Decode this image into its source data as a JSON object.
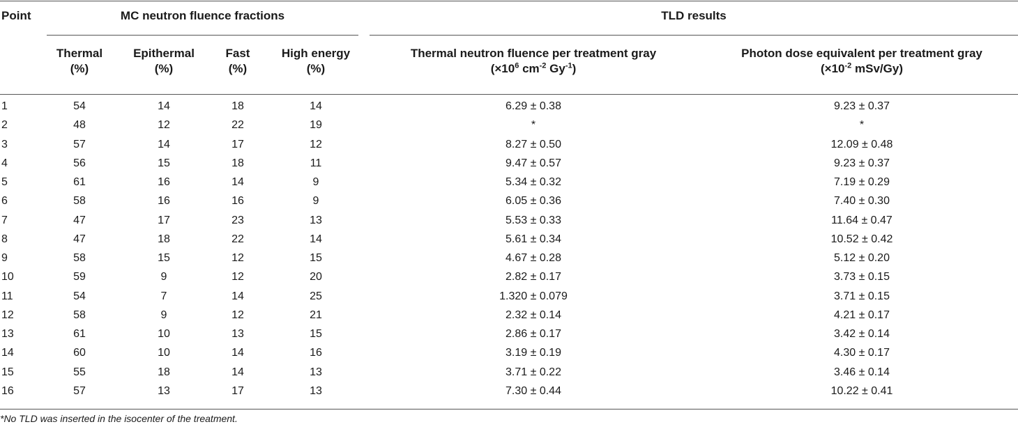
{
  "headers": {
    "point": "Point",
    "mc_group": "MC neutron fluence fractions",
    "tld_group": "TLD results",
    "thermal": [
      "Thermal",
      "(%)"
    ],
    "epithermal": [
      "Epithermal",
      "(%)"
    ],
    "fast": [
      "Fast",
      "(%)"
    ],
    "high_energy": [
      "High energy",
      "(%)"
    ],
    "thermal_fluence": {
      "line1": "Thermal neutron fluence per treatment gray",
      "prefix": "(×10",
      "exp1": "6",
      "mid": " cm",
      "exp2": "-2",
      "mid2": " Gy",
      "exp3": "-1",
      "suffix": ")"
    },
    "photon_dose": {
      "line1": "Photon dose equivalent per treatment gray",
      "prefix": "(×10",
      "exp1": "-2",
      "suffix": " mSv/Gy)"
    }
  },
  "rows": [
    [
      "1",
      "54",
      "14",
      "18",
      "14",
      "6.29 ± 0.38",
      "9.23 ± 0.37"
    ],
    [
      "2",
      "48",
      "12",
      "22",
      "19",
      "*",
      "*"
    ],
    [
      "3",
      "57",
      "14",
      "17",
      "12",
      "8.27 ± 0.50",
      "12.09 ± 0.48"
    ],
    [
      "4",
      "56",
      "15",
      "18",
      "11",
      "9.47 ± 0.57",
      "9.23 ± 0.37"
    ],
    [
      "5",
      "61",
      "16",
      "14",
      "9",
      "5.34 ± 0.32",
      "7.19 ± 0.29"
    ],
    [
      "6",
      "58",
      "16",
      "16",
      "9",
      "6.05 ± 0.36",
      "7.40 ± 0.30"
    ],
    [
      "7",
      "47",
      "17",
      "23",
      "13",
      "5.53 ± 0.33",
      "11.64 ± 0.47"
    ],
    [
      "8",
      "47",
      "18",
      "22",
      "14",
      "5.61 ± 0.34",
      "10.52 ± 0.42"
    ],
    [
      "9",
      "58",
      "15",
      "12",
      "15",
      "4.67 ± 0.28",
      "5.12 ± 0.20"
    ],
    [
      "10",
      "59",
      "9",
      "12",
      "20",
      "2.82 ± 0.17",
      "3.73 ± 0.15"
    ],
    [
      "11",
      "54",
      "7",
      "14",
      "25",
      "1.320 ± 0.079",
      "3.71 ± 0.15"
    ],
    [
      "12",
      "58",
      "9",
      "12",
      "21",
      "2.32 ± 0.14",
      "4.21 ± 0.17"
    ],
    [
      "13",
      "61",
      "10",
      "13",
      "15",
      "2.86 ± 0.17",
      "3.42 ± 0.14"
    ],
    [
      "14",
      "60",
      "10",
      "14",
      "16",
      "3.19 ± 0.19",
      "4.30 ± 0.17"
    ],
    [
      "15",
      "55",
      "18",
      "14",
      "13",
      "3.71 ± 0.22",
      "3.46 ± 0.14"
    ],
    [
      "16",
      "57",
      "13",
      "17",
      "13",
      "7.30 ± 0.44",
      "10.22 ± 0.41"
    ]
  ],
  "footnote": "*No TLD was inserted in the isocenter of the treatment."
}
